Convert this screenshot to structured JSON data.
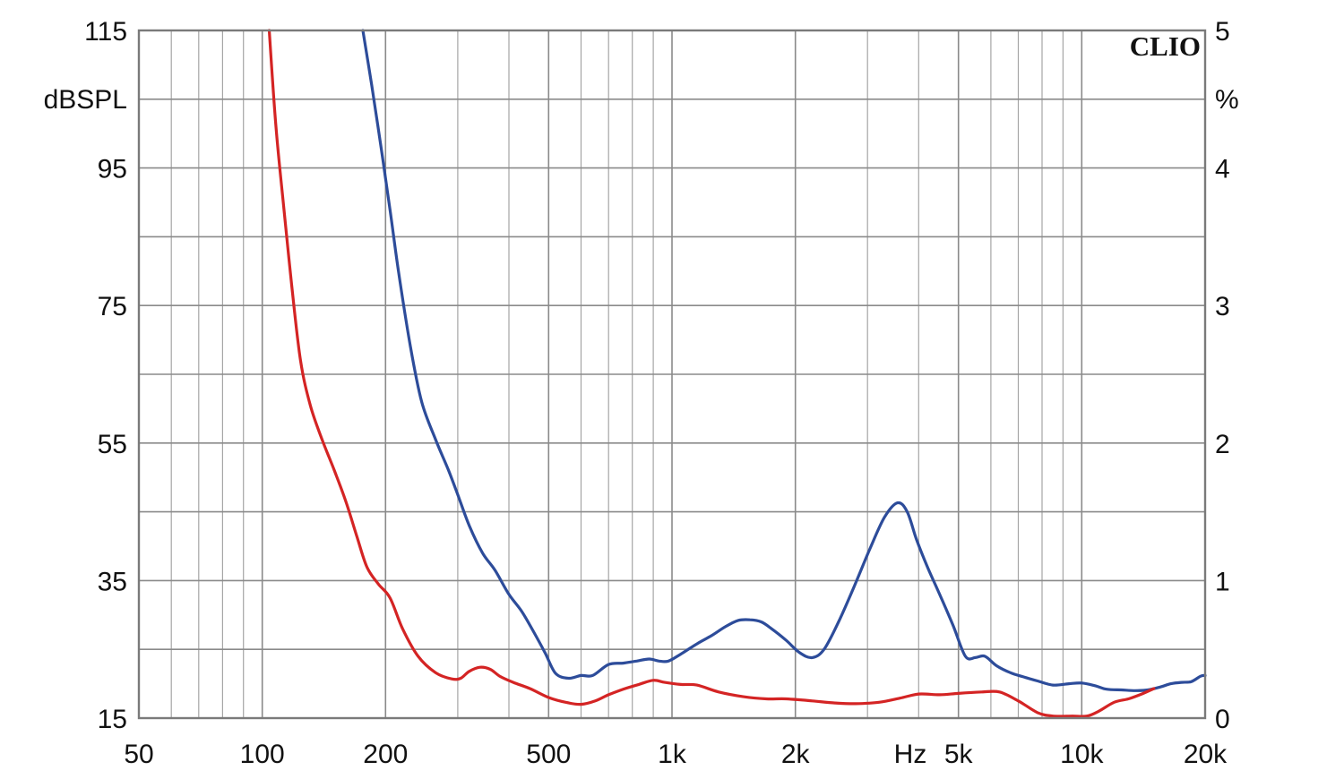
{
  "chart_data": {
    "type": "line",
    "brand": "CLIO",
    "x_unit": "Hz",
    "left_unit": "dBSPL",
    "right_unit": "%",
    "x_scale": "log",
    "xlim": [
      50,
      20000
    ],
    "ylim_left": [
      15,
      115
    ],
    "ylim_right": [
      0,
      5
    ],
    "grid": true,
    "x_ticks": [
      {
        "value": 50,
        "label": "50"
      },
      {
        "value": 100,
        "label": "100"
      },
      {
        "value": 200,
        "label": "200"
      },
      {
        "value": 500,
        "label": "500"
      },
      {
        "value": 1000,
        "label": "1k"
      },
      {
        "value": 2000,
        "label": "2k"
      },
      {
        "value": 5000,
        "label": "5k"
      },
      {
        "value": 10000,
        "label": "10k"
      },
      {
        "value": 20000,
        "label": "20k"
      }
    ],
    "y_ticks_left": [
      "115",
      "95",
      "75",
      "55",
      "35",
      "15"
    ],
    "y_ticks_right": [
      "5",
      "4",
      "3",
      "2",
      "1",
      "0"
    ],
    "series": [
      {
        "color": "#2d4c9a",
        "axis": "left",
        "x": [
          176,
          185,
          195,
          205,
          215,
          230,
          245,
          265,
          285,
          300,
          320,
          345,
          370,
          400,
          430,
          460,
          490,
          520,
          560,
          600,
          640,
          700,
          760,
          820,
          880,
          930,
          980,
          1050,
          1150,
          1250,
          1350,
          1450,
          1550,
          1650,
          1750,
          1900,
          2050,
          2200,
          2350,
          2550,
          2800,
          3050,
          3300,
          3550,
          3750,
          3950,
          4200,
          4500,
          4850,
          5200,
          5500,
          5800,
          6200,
          6700,
          7200,
          7800,
          8500,
          9300,
          10000,
          10800,
          11500,
          12500,
          13500,
          14500,
          15500,
          16500,
          17500,
          18500,
          19500,
          20000
        ],
        "y": [
          115,
          107,
          98,
          89,
          80,
          69,
          61,
          55.5,
          51,
          47.5,
          43,
          39,
          36.5,
          33,
          30.5,
          27.5,
          24.5,
          21.5,
          20.8,
          21.2,
          21.2,
          22.8,
          23,
          23.3,
          23.6,
          23.3,
          23.3,
          24.3,
          25.8,
          27,
          28.3,
          29.2,
          29.3,
          29,
          28,
          26.3,
          24.5,
          23.8,
          25,
          29,
          34.5,
          39.8,
          44.2,
          46.3,
          45,
          41,
          37,
          33,
          28.5,
          24,
          23.8,
          24,
          22.6,
          21.6,
          21,
          20.4,
          19.8,
          20,
          20.1,
          19.7,
          19.2,
          19.1,
          19,
          19.1,
          19.5,
          20,
          20.2,
          20.3,
          21.1,
          21.2
        ]
      },
      {
        "color": "#d42424",
        "axis": "left",
        "x": [
          104,
          108,
          113,
          118,
          124,
          131,
          140,
          150,
          160,
          170,
          180,
          192,
          205,
          220,
          240,
          265,
          290,
          305,
          320,
          340,
          360,
          380,
          410,
          450,
          500,
          550,
          600,
          650,
          700,
          760,
          830,
          900,
          960,
          1050,
          1150,
          1300,
          1500,
          1700,
          1900,
          2200,
          2500,
          2800,
          3200,
          3600,
          4000,
          4500,
          5000,
          5700,
          6300,
          7000,
          7800,
          8500,
          9500,
          10300,
          11000,
          12000,
          13000,
          14000,
          15000
        ],
        "y": [
          115,
          101,
          89,
          78,
          67,
          60.5,
          55.5,
          51,
          46.5,
          41.5,
          37,
          34.5,
          32.5,
          28,
          24,
          21.6,
          20.7,
          20.8,
          21.8,
          22.4,
          22.1,
          21.1,
          20.2,
          19.3,
          18,
          17.3,
          17,
          17.5,
          18.4,
          19.2,
          19.9,
          20.5,
          20.2,
          19.9,
          19.8,
          18.8,
          18.1,
          17.8,
          17.8,
          17.5,
          17.2,
          17.1,
          17.3,
          17.9,
          18.5,
          18.4,
          18.6,
          18.8,
          18.8,
          17.5,
          15.8,
          15.3,
          15.3,
          15.3,
          16,
          17.3,
          17.8,
          18.5,
          19.3
        ]
      }
    ]
  }
}
